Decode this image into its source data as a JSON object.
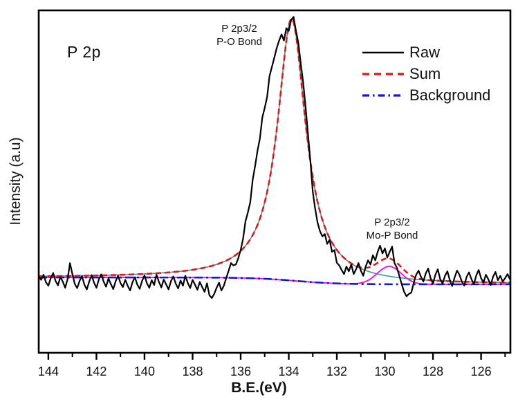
{
  "page": {
    "background": "#ffffff"
  },
  "chart_data": {
    "type": "line",
    "title": "P 2p",
    "xlabel": "B.E.(eV)",
    "ylabel": "Intensity (a.u)",
    "x_axis": {
      "min": 124.78,
      "max": 144.4,
      "reversed": true,
      "major_ticks": [
        144,
        142,
        140,
        138,
        136,
        134,
        132,
        130,
        128,
        126
      ],
      "minor_ticks": [
        143,
        141,
        139,
        137,
        135,
        133,
        131,
        129,
        127,
        125
      ],
      "tick_color": "#111111"
    },
    "y_axis": {
      "min": 0,
      "max": 1000,
      "tick_labels_visible": false,
      "units": "arbitrary"
    },
    "grid": false,
    "legend": {
      "position": "upper-right",
      "items": [
        {
          "label": "Raw",
          "color": "#000000",
          "dash": "",
          "width": 2.6
        },
        {
          "label": "Sum",
          "color": "#ee1111",
          "dash": "10 7",
          "width": 3.2
        },
        {
          "label": "Background",
          "color": "#1414dd",
          "dash": "10 5 2.5 5",
          "width": 3.2
        }
      ]
    },
    "annotations": [
      {
        "lines": [
          "P 2p3/2",
          "P-O Bond"
        ],
        "near_ev": 134.6,
        "target": "main peak"
      },
      {
        "lines": [
          "P 2p3/2",
          "Mo-P Bond"
        ],
        "near_ev": 129.8,
        "target": "minor peak"
      }
    ],
    "fit_model": {
      "background": {
        "shape": "sigmoid-step",
        "left_level": 220,
        "right_level": 200,
        "step_center": 133.7,
        "step_width": 0.9,
        "color": "#1414dd",
        "dash": "12 5 3 5",
        "width": 2.6
      },
      "peaks": [
        {
          "name": "P 2p3/2 P-O Bond",
          "shape": "lorentzian",
          "center": 133.88,
          "amplitude": 764,
          "hwhm": 0.72,
          "color": "#2e9e9e",
          "width": 1.6
        },
        {
          "name": "P 2p3/2 Mo-P Bond",
          "shape": "gaussian",
          "center": 129.82,
          "amplitude": 52,
          "sigma": 0.5,
          "color": "#ff00ff",
          "width": 1.8
        }
      ],
      "sum": {
        "color": "#ee1111",
        "dash": "8 5",
        "width": 2.6
      }
    },
    "raw_series": {
      "x_start": 144.4,
      "x_step": -0.1,
      "x_unit": "eV",
      "color": "#000000",
      "width": 2.2,
      "values": [
        224,
        213,
        228,
        206,
        196,
        218,
        233,
        210,
        197,
        221,
        208,
        190,
        215,
        262,
        230,
        201,
        189,
        210,
        224,
        199,
        185,
        208,
        227,
        205,
        190,
        214,
        229,
        208,
        193,
        217,
        201,
        186,
        209,
        225,
        204,
        192,
        213,
        196,
        182,
        206,
        221,
        199,
        187,
        210,
        226,
        203,
        190,
        212,
        198,
        228,
        207,
        191,
        214,
        200,
        185,
        209,
        223,
        202,
        188,
        211,
        196,
        225,
        204,
        189,
        213,
        199,
        184,
        207,
        192,
        178,
        203,
        168,
        160,
        172,
        190,
        205,
        182,
        196,
        218,
        240,
        262,
        255,
        258,
        276,
        300,
        333,
        384,
        410,
        440,
        505,
        545,
        590,
        626,
        687,
        715,
        747,
        808,
        835,
        862,
        890,
        912,
        930,
        912,
        948,
        940,
        972,
        981,
        940,
        905,
        845,
        790,
        718,
        640,
        560,
        470,
        420,
        380,
        355,
        340,
        347,
        318,
        330,
        295,
        300,
        263,
        255,
        242,
        230,
        252,
        238,
        258,
        230,
        244,
        262,
        240,
        225,
        252,
        270,
        258,
        285,
        270,
        295,
        313,
        290,
        305,
        278,
        295,
        310,
        262,
        248,
        225,
        200,
        178,
        165,
        172,
        176,
        205,
        228,
        240,
        222,
        208,
        232,
        246,
        218,
        202,
        228,
        244,
        215,
        202,
        225,
        238,
        212,
        195,
        220,
        240,
        228,
        208,
        196,
        222,
        235,
        215,
        200,
        226,
        242,
        218,
        205,
        228,
        215,
        198,
        222,
        236,
        212,
        225,
        208,
        218,
        230,
        215
      ]
    }
  }
}
